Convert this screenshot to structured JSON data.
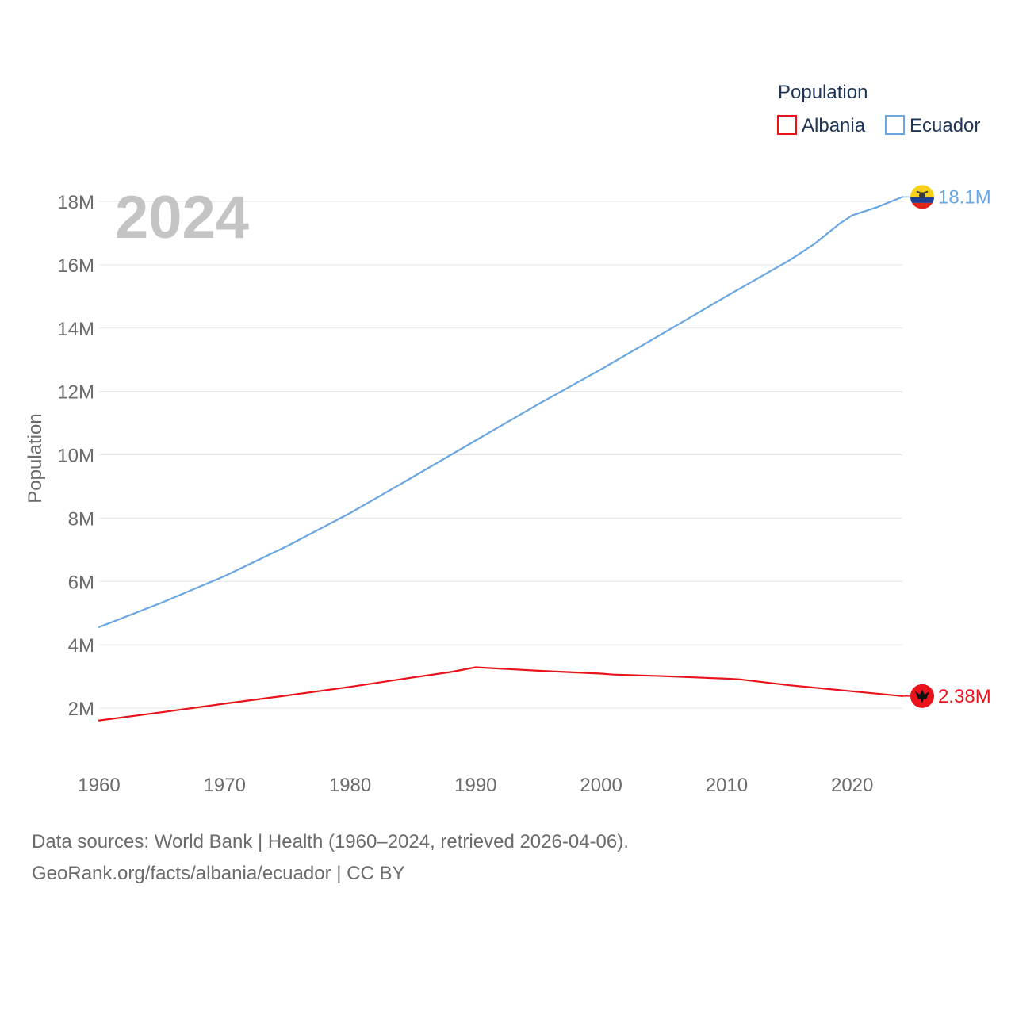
{
  "chart_data": {
    "type": "line",
    "year_label": "2024",
    "ylabel": "Population",
    "xlabel": "",
    "xlim": [
      1960,
      2024
    ],
    "ylim": [
      0,
      19000000
    ],
    "x_ticks": [
      1960,
      1970,
      1980,
      1990,
      2000,
      2010,
      2020
    ],
    "x_tick_labels": [
      "1960",
      "1970",
      "1980",
      "1990",
      "2000",
      "2010",
      "2020"
    ],
    "y_ticks": [
      2000000,
      4000000,
      6000000,
      8000000,
      10000000,
      12000000,
      14000000,
      16000000,
      18000000
    ],
    "y_tick_labels": [
      "2M",
      "4M",
      "6M",
      "8M",
      "10M",
      "12M",
      "14M",
      "16M",
      "18M"
    ],
    "grid": true,
    "legend": {
      "title": "Population",
      "position": "top-right"
    },
    "series": [
      {
        "name": "Albania",
        "color": "#e8131b",
        "end_label": "2.38M",
        "flag_icon": "albania-flag-icon",
        "x": [
          1960,
          1965,
          1970,
          1975,
          1980,
          1985,
          1988,
          1990,
          1995,
          2000,
          2001,
          2005,
          2010,
          2011,
          2015,
          2020,
          2024
        ],
        "y": [
          1610000,
          1870000,
          2140000,
          2400000,
          2670000,
          2970000,
          3140000,
          3290000,
          3180000,
          3090000,
          3060000,
          3010000,
          2930000,
          2910000,
          2720000,
          2530000,
          2380000
        ]
      },
      {
        "name": "Ecuador",
        "color": "#6aa6e2",
        "end_label": "18.1M",
        "flag_icon": "ecuador-flag-icon",
        "x": [
          1960,
          1965,
          1970,
          1975,
          1980,
          1985,
          1990,
          1995,
          2000,
          2005,
          2010,
          2015,
          2017,
          2019,
          2020,
          2022,
          2024
        ],
        "y": [
          4560000,
          5330000,
          6170000,
          7120000,
          8160000,
          9300000,
          10450000,
          11600000,
          12700000,
          13850000,
          15010000,
          16140000,
          16660000,
          17300000,
          17560000,
          17820000,
          18140000
        ]
      }
    ]
  },
  "footer": {
    "line1": "Data sources: World Bank | Health (1960–2024, retrieved 2026-04-06).",
    "line2": "GeoRank.org/facts/albania/ecuador | CC BY"
  }
}
